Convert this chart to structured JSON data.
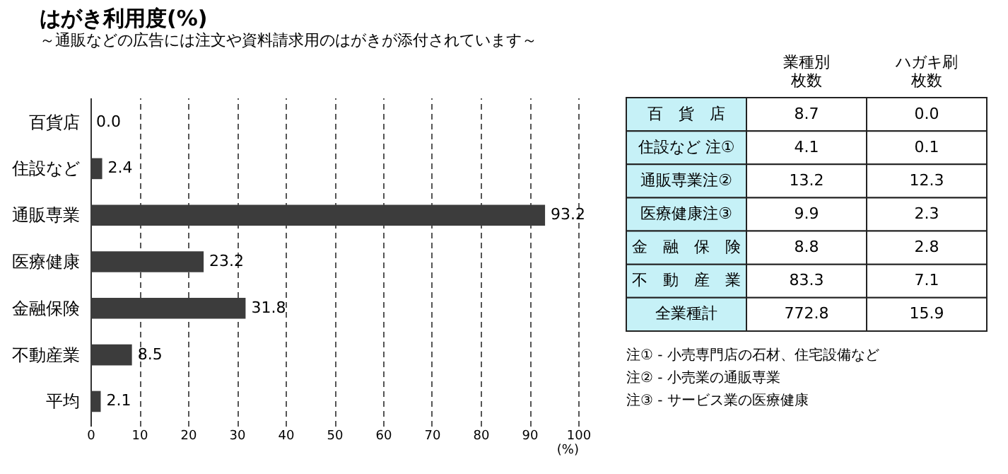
{
  "chart_data": [
    {
      "type": "bar",
      "title": "はがき利用度(%)",
      "subtitle": "～通販などの広告には注文や資料請求用のはがきが添付されています～",
      "orientation": "horizontal",
      "xlabel": "(%)",
      "categories": [
        "百貨店",
        "住設など",
        "通販専業",
        "医療健康",
        "金融保険",
        "不動産業",
        "平均"
      ],
      "values": [
        0.0,
        2.4,
        93.2,
        23.2,
        31.8,
        8.5,
        2.1
      ],
      "value_labels": [
        "0.0",
        "2.4",
        "93.2",
        "23.2",
        "31.8",
        "8.5",
        "2.1"
      ],
      "color": "#3c3c3c",
      "xlim": [
        0,
        100
      ],
      "xticks": [
        0,
        10,
        20,
        30,
        40,
        50,
        60,
        70,
        80,
        90,
        100
      ],
      "grid": "x"
    },
    {
      "type": "other",
      "categories": [
        "百　貨　店",
        "住設など 注①",
        "通販専業注②",
        "医療健康注③",
        "金　融　保　険",
        "不　動　産　業",
        "全業種計"
      ],
      "series": [
        {
          "name": "業種別枚数",
          "values": [
            8.7,
            4.1,
            13.2,
            9.9,
            8.8,
            83.3,
            772.8
          ],
          "value_labels": [
            "8.7",
            "4.1",
            "13.2",
            "9.9",
            "8.8",
            "83.3",
            "772.8"
          ]
        },
        {
          "name": "ハガキ刷枚数",
          "values": [
            0.0,
            0.1,
            12.3,
            2.3,
            2.8,
            7.1,
            15.9
          ],
          "value_labels": [
            "0.0",
            "0.1",
            "12.3",
            "2.3",
            "2.8",
            "7.1",
            "15.9"
          ]
        }
      ],
      "annotations": [
        "注① - 小売専門店の石材、住宅設備など",
        "注② - 小売業の通販専業",
        "注③ - サービス業の医療健康"
      ]
    }
  ]
}
